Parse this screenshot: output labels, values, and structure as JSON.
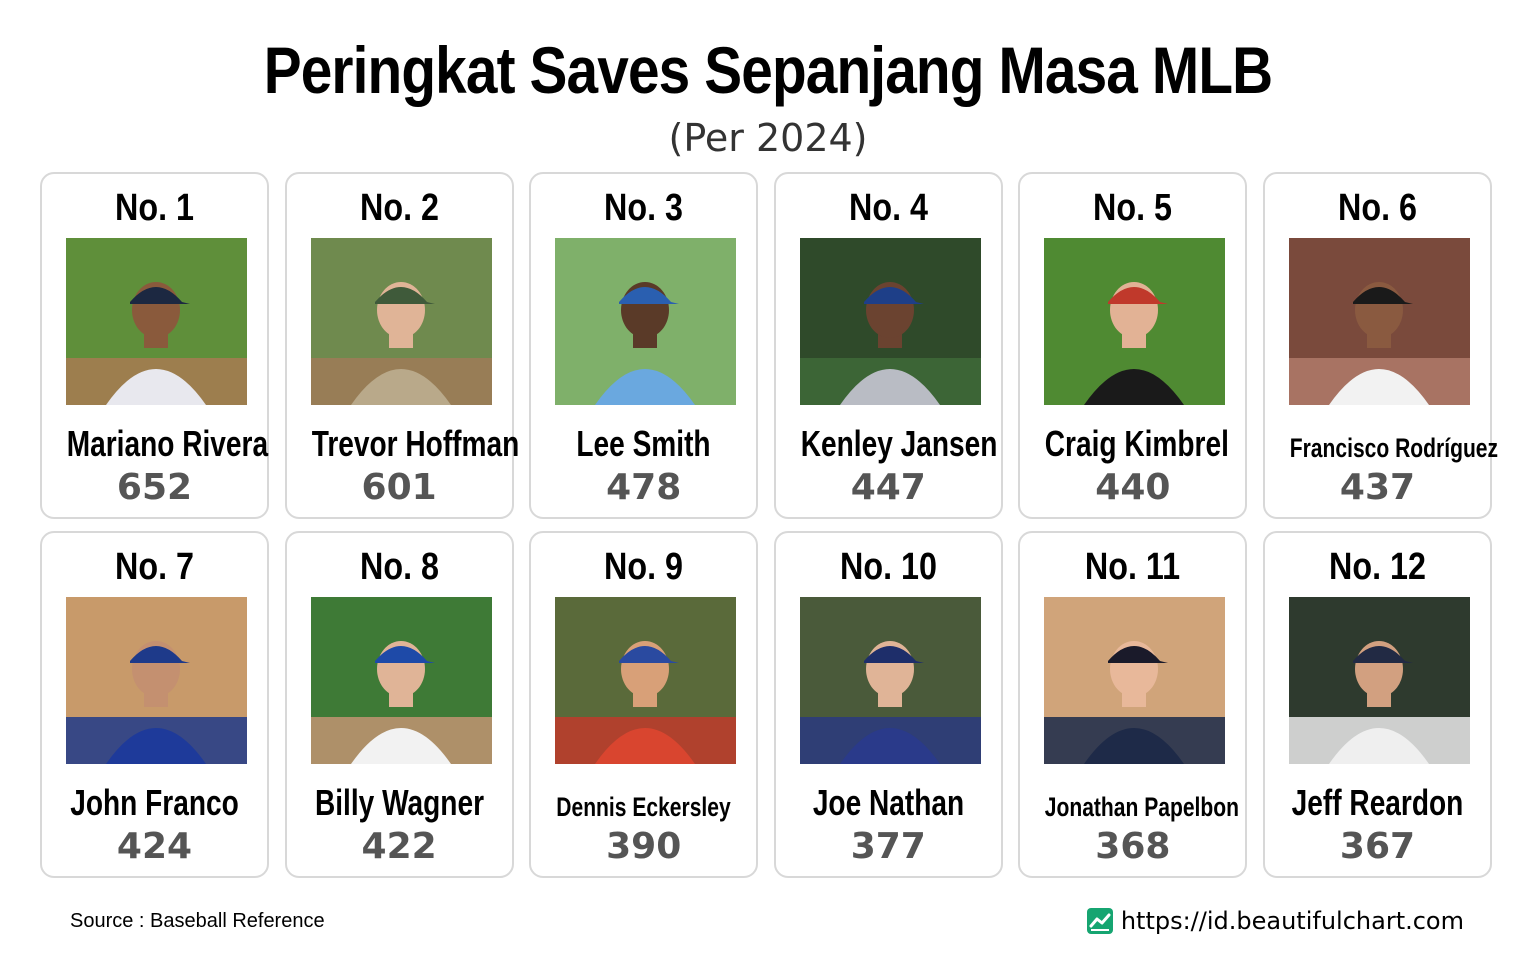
{
  "title": "Peringkat Saves Sepanjang Masa MLB",
  "subtitle": "(Per 2024)",
  "players": [
    {
      "rank": "No. 1",
      "name": "Mariano Rivera",
      "saves": "652",
      "small": false,
      "bg": "#5f8f3a",
      "ground": "#a87b52",
      "uniform": "#e8e8ee",
      "cap": "#1c2841",
      "skin": "#8a5a3c"
    },
    {
      "rank": "No. 2",
      "name": "Trevor Hoffman",
      "saves": "601",
      "small": false,
      "bg": "#6f8a4e",
      "ground": "#a07a58",
      "uniform": "#b9a98a",
      "cap": "#3f5a3a",
      "skin": "#e0b497"
    },
    {
      "rank": "No. 3",
      "name": "Lee Smith",
      "saves": "478",
      "small": false,
      "bg": "#7fb06a",
      "ground": "#7fb06a",
      "uniform": "#6aa8df",
      "cap": "#2a5fb0",
      "skin": "#5a3a28"
    },
    {
      "rank": "No. 4",
      "name": "Kenley Jansen",
      "saves": "447",
      "small": false,
      "bg": "#2f4a2a",
      "ground": "#3e6a38",
      "uniform": "#b9bcc4",
      "cap": "#1e3f88",
      "skin": "#6b4330"
    },
    {
      "rank": "No. 5",
      "name": "Craig Kimbrel",
      "saves": "440",
      "small": false,
      "bg": "#4f8a32",
      "ground": "#4f8a32",
      "uniform": "#1a1a1a",
      "cap": "#c0392b",
      "skin": "#e2b295"
    },
    {
      "rank": "No. 6",
      "name": "Francisco Rodríguez",
      "saves": "437",
      "small": true,
      "bg": "#7a4a3c",
      "ground": "#b07a6a",
      "uniform": "#f2f2f2",
      "cap": "#1a1a1a",
      "skin": "#8a5a40"
    },
    {
      "rank": "No. 7",
      "name": "John Franco",
      "saves": "424",
      "small": false,
      "bg": "#c89a6a",
      "ground": "#1e3a8a",
      "uniform": "#1e3a9a",
      "cap": "#1e3a8a",
      "skin": "#c49070"
    },
    {
      "rank": "No. 8",
      "name": "Billy Wagner",
      "saves": "422",
      "small": false,
      "bg": "#3e7a36",
      "ground": "#c29472",
      "uniform": "#f2f2f2",
      "cap": "#1e4aa8",
      "skin": "#e0b497"
    },
    {
      "rank": "No. 9",
      "name": "Dennis Eckersley",
      "saves": "390",
      "small": true,
      "bg": "#5a6a3a",
      "ground": "#c0392b",
      "uniform": "#d9452f",
      "cap": "#2a4aa0",
      "skin": "#d8a078"
    },
    {
      "rank": "No. 10",
      "name": "Joe Nathan",
      "saves": "377",
      "small": false,
      "bg": "#4a5a3a",
      "ground": "#2a3a80",
      "uniform": "#2a3a8a",
      "cap": "#1e2e6a",
      "skin": "#e0b497"
    },
    {
      "rank": "No. 11",
      "name": "Jonathan Papelbon",
      "saves": "368",
      "small": true,
      "bg": "#d0a47a",
      "ground": "#1a2a4a",
      "uniform": "#1e2a48",
      "cap": "#1a1a2a",
      "skin": "#e8b89a"
    },
    {
      "rank": "No. 12",
      "name": "Jeff Reardon",
      "saves": "367",
      "small": false,
      "bg": "#2e3a2e",
      "ground": "#eaeaea",
      "uniform": "#efefef",
      "cap": "#222a44",
      "skin": "#d2a080"
    }
  ],
  "source": "Source : Baseball Reference",
  "site_url": "https://id.beautifulchart.com",
  "site_icon": "chart-line-icon",
  "colors": {
    "card_border": "#d8d8d8",
    "value_text": "#555555",
    "brand": "#16a571"
  }
}
